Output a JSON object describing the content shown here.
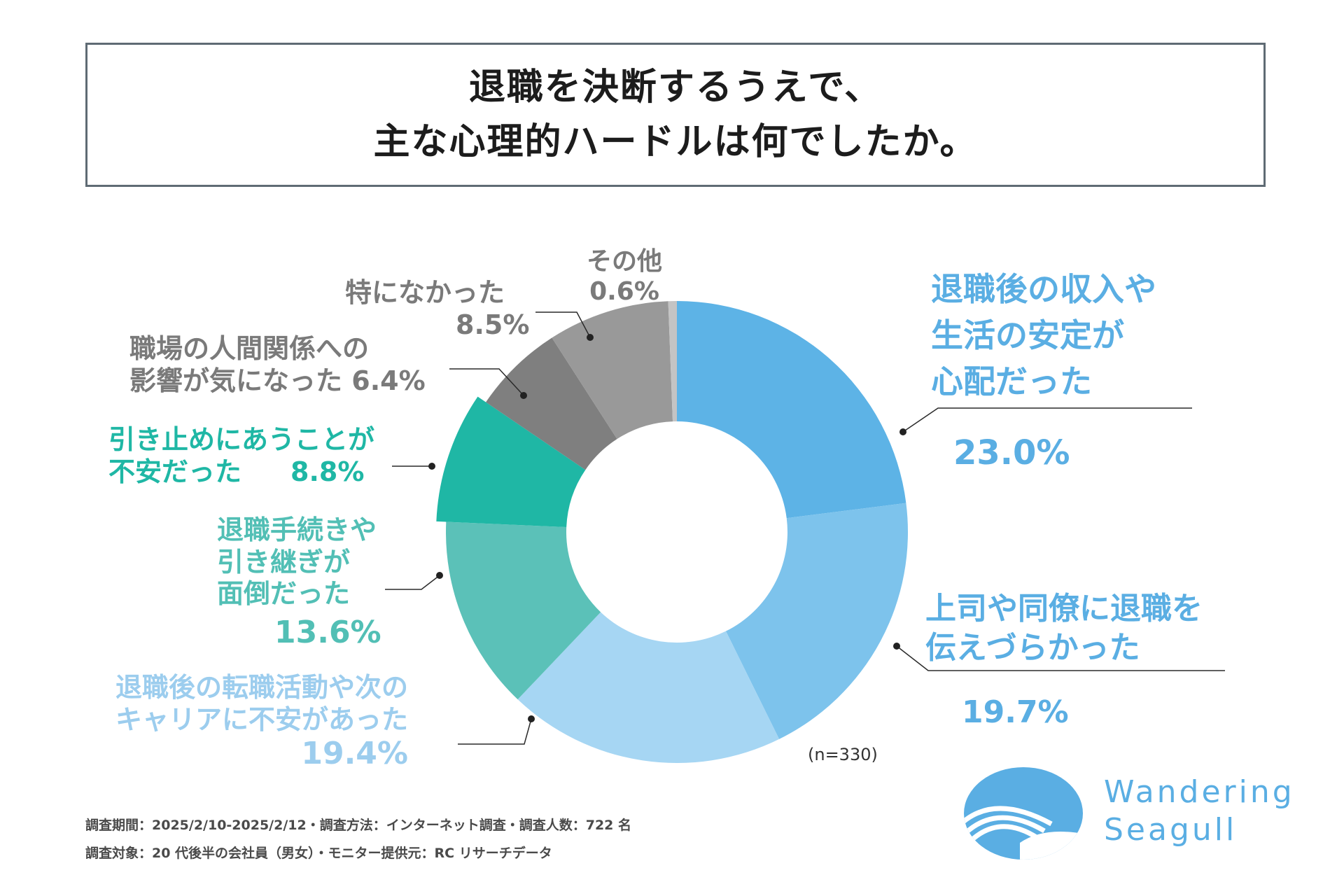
{
  "title": {
    "line1": "退職を決断するうえで、",
    "line2": "主な心理的ハードルは何でしたか。"
  },
  "chart_data": {
    "type": "pie",
    "donut": true,
    "start": "top, clockwise",
    "sample_size_label": "(n=330)",
    "categories": [
      "退職後の収入や生活の安定が心配だった",
      "上司や同僚に退職を伝えづらかった",
      "退職後の転職活動や次のキャリアに不安があった",
      "退職手続きや引き継ぎが面倒だった",
      "引き止めにあうことが不安だった",
      "職場の人間関係への影響が気になった",
      "特になかった",
      "その他"
    ],
    "values": [
      23.0,
      19.7,
      19.4,
      13.6,
      8.8,
      6.4,
      8.5,
      0.6
    ],
    "colors": [
      "#5db3e6",
      "#7dc3ec",
      "#a6d6f3",
      "#5bc1b8",
      "#1fb7a5",
      "#7f7f7f",
      "#999999",
      "#c4c4c4"
    ],
    "labels": [
      {
        "lines": [
          "退職後の収入や",
          "生活の安定が",
          "心配だった"
        ],
        "percent": "23.0%"
      },
      {
        "lines": [
          "上司や同僚に退職を",
          "伝えづらかった"
        ],
        "percent": "19.7%"
      },
      {
        "lines": [
          "退職後の転職活動や次の",
          "キャリアに不安があった"
        ],
        "percent": "19.4%"
      },
      {
        "lines": [
          "退職手続きや",
          "引き継ぎが",
          "面倒だった"
        ],
        "percent": "13.6%"
      },
      {
        "lines": [
          "引き止めにあうことが",
          "不安だった"
        ],
        "percent": "8.8%"
      },
      {
        "lines": [
          "職場の人間関係への",
          "影響が気になった"
        ],
        "percent": "6.4%"
      },
      {
        "lines": [
          "特になかった"
        ],
        "percent": "8.5%"
      },
      {
        "lines": [
          "その他"
        ],
        "percent": "0.6%"
      }
    ]
  },
  "footnotes": {
    "line1": "調査期間：2025/2/10-2025/2/12・調査方法：インターネット調査・調査人数：722 名",
    "line2": "調査対象：20 代後半の会社員（男女）・モニター提供元：RC リサーチデータ"
  },
  "logo": {
    "line1": "Wandering",
    "line2": "Seagull",
    "color": "#5aaee3"
  }
}
